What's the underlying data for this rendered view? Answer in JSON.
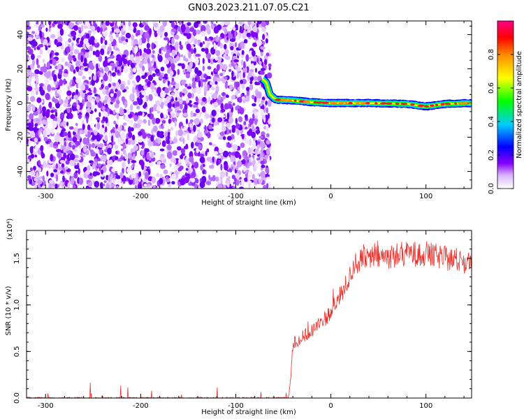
{
  "title": "GN03.2023.211.07.05.C21",
  "chart_data": [
    {
      "type": "heatmap",
      "xlabel": "Height of straight line (km)",
      "ylabel": "Frequency (Hz)",
      "xlim": [
        -320,
        148
      ],
      "ylim": [
        -50,
        48
      ],
      "xticks": [
        -300,
        -200,
        -100,
        0,
        100
      ],
      "yticks": [
        -40,
        -20,
        0,
        20,
        40
      ],
      "noise_region_x": [
        -320,
        -64
      ],
      "signal_track": [
        {
          "x": -72,
          "y": 14
        },
        {
          "x": -68,
          "y": 12
        },
        {
          "x": -64,
          "y": 5
        },
        {
          "x": -58,
          "y": 2
        },
        {
          "x": -40,
          "y": 1.5
        },
        {
          "x": -20,
          "y": 0.5
        },
        {
          "x": 0,
          "y": 0
        },
        {
          "x": 40,
          "y": 0
        },
        {
          "x": 80,
          "y": -0.5
        },
        {
          "x": 100,
          "y": -2
        },
        {
          "x": 120,
          "y": -0.5
        },
        {
          "x": 148,
          "y": 0
        }
      ],
      "colorbar": {
        "label": "Normalized spectral amplitude",
        "range": [
          0,
          1
        ],
        "ticks": [
          "0.0",
          "0.2",
          "0.4",
          "0.6",
          "0.8"
        ],
        "colors": [
          "#ffffff",
          "#8800ff",
          "#0000ff",
          "#00ccff",
          "#00ff00",
          "#ffff00",
          "#ff8800",
          "#ff0000",
          "#ff0088"
        ]
      }
    },
    {
      "type": "line",
      "xlabel": "Height of straight line (km)",
      "ylabel": "SNR (10 * v/v)",
      "multiplier": "(x10⁴)",
      "xlim": [
        -320,
        148
      ],
      "ylim": [
        0,
        1.8
      ],
      "xticks": [
        -300,
        -200,
        -100,
        0,
        100
      ],
      "yticks": [
        "0.0",
        "0.5",
        "1.0",
        "1.5"
      ],
      "color": "#e8322c",
      "series": [
        {
          "x": [
            -320,
            -45,
            -43,
            -40,
            -38,
            -35,
            -30,
            -20,
            -10,
            0,
            10,
            20,
            25,
            40,
            60,
            80,
            100,
            120,
            148
          ],
          "y": [
            0.0,
            0.0,
            0.12,
            0.55,
            0.62,
            0.6,
            0.65,
            0.72,
            0.82,
            0.92,
            1.1,
            1.3,
            1.45,
            1.5,
            1.52,
            1.55,
            1.55,
            1.5,
            1.45
          ]
        }
      ]
    }
  ]
}
